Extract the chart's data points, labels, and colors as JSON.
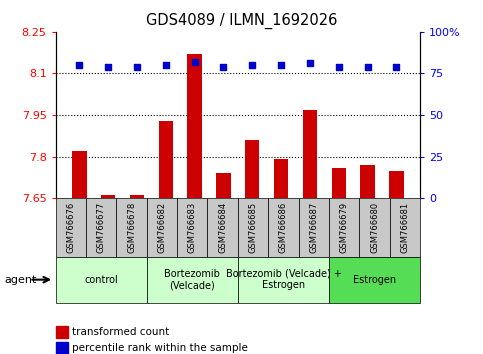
{
  "title": "GDS4089 / ILMN_1692026",
  "samples": [
    "GSM766676",
    "GSM766677",
    "GSM766678",
    "GSM766682",
    "GSM766683",
    "GSM766684",
    "GSM766685",
    "GSM766686",
    "GSM766687",
    "GSM766679",
    "GSM766680",
    "GSM766681"
  ],
  "transformed_count": [
    7.82,
    7.66,
    7.66,
    7.93,
    8.17,
    7.74,
    7.86,
    7.79,
    7.97,
    7.76,
    7.77,
    7.75
  ],
  "percentile_rank": [
    80,
    79,
    79,
    80,
    82,
    79,
    80,
    80,
    81,
    79,
    79,
    79
  ],
  "ylim_left": [
    7.65,
    8.25
  ],
  "ylim_right": [
    0,
    100
  ],
  "yticks_left": [
    7.65,
    7.8,
    7.95,
    8.1,
    8.25
  ],
  "yticks_left_labels": [
    "7.65",
    "7.8",
    "7.95",
    "8.1",
    "8.25"
  ],
  "yticks_right": [
    0,
    25,
    50,
    75,
    100
  ],
  "yticks_right_labels": [
    "0",
    "25",
    "50",
    "75",
    "100%"
  ],
  "hlines": [
    7.8,
    7.95,
    8.1
  ],
  "bar_color": "#cc0000",
  "dot_color": "#0000cc",
  "bar_bottom": 7.65,
  "groups": [
    {
      "label": "control",
      "start": 0,
      "end": 3,
      "color": "#ccffcc"
    },
    {
      "label": "Bortezomib\n(Velcade)",
      "start": 3,
      "end": 6,
      "color": "#ccffcc"
    },
    {
      "label": "Bortezomib (Velcade) +\nEstrogen",
      "start": 6,
      "end": 9,
      "color": "#ccffcc"
    },
    {
      "label": "Estrogen",
      "start": 9,
      "end": 12,
      "color": "#55dd55"
    }
  ],
  "agent_label": "agent",
  "legend_bar_label": "transformed count",
  "legend_dot_label": "percentile rank within the sample",
  "tick_label_bg": "#c8c8c8",
  "plot_bg_color": "#ffffff"
}
